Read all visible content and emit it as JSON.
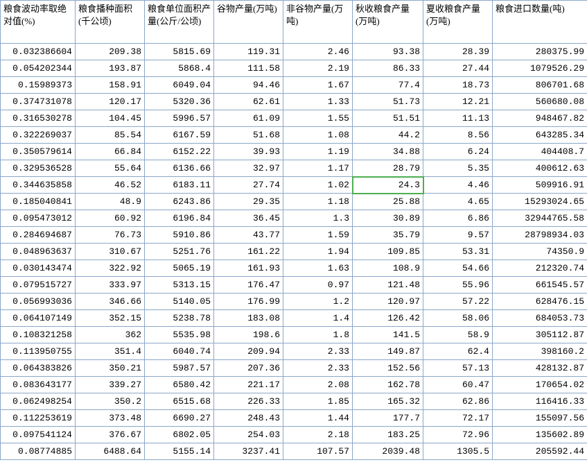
{
  "table": {
    "columns": [
      "粮食波动率取绝对值(%)",
      "粮食播种面积(千公顷)",
      "粮食单位面积产量(公斤/公顷)",
      "谷物产量(万吨)",
      "非谷物产量(万吨)",
      "秋收粮食产量(万吨)",
      "夏收粮食产量(万吨)",
      "粮食进口数量(吨)"
    ],
    "active_cell": {
      "row": 8,
      "col": 5
    },
    "rows": [
      [
        "0.032386604",
        "209.38",
        "5815.69",
        "119.31",
        "2.46",
        "93.38",
        "28.39",
        "280375.99"
      ],
      [
        "0.054202344",
        "193.87",
        "5868.4",
        "111.58",
        "2.19",
        "86.33",
        "27.44",
        "1079526.29"
      ],
      [
        "0.15989373",
        "158.91",
        "6049.04",
        "94.46",
        "1.67",
        "77.4",
        "18.73",
        "806701.68"
      ],
      [
        "0.374731078",
        "120.17",
        "5320.36",
        "62.61",
        "1.33",
        "51.73",
        "12.21",
        "560680.08"
      ],
      [
        "0.316530278",
        "104.45",
        "5996.57",
        "61.09",
        "1.55",
        "51.51",
        "11.13",
        "948467.82"
      ],
      [
        "0.322269037",
        "85.54",
        "6167.59",
        "51.68",
        "1.08",
        "44.2",
        "8.56",
        "643285.34"
      ],
      [
        "0.350579614",
        "66.84",
        "6152.22",
        "39.93",
        "1.19",
        "34.88",
        "6.24",
        "404408.7"
      ],
      [
        "0.329536528",
        "55.64",
        "6136.66",
        "32.97",
        "1.17",
        "28.79",
        "5.35",
        "400612.63"
      ],
      [
        "0.344635858",
        "46.52",
        "6183.11",
        "27.74",
        "1.02",
        "24.3",
        "4.46",
        "509916.91"
      ],
      [
        "0.185040841",
        "48.9",
        "6243.86",
        "29.35",
        "1.18",
        "25.88",
        "4.65",
        "15293024.65"
      ],
      [
        "0.095473012",
        "60.92",
        "6196.84",
        "36.45",
        "1.3",
        "30.89",
        "6.86",
        "32944765.58"
      ],
      [
        "0.284694687",
        "76.73",
        "5910.86",
        "43.77",
        "1.59",
        "35.79",
        "9.57",
        "28798934.03"
      ],
      [
        "0.048963637",
        "310.67",
        "5251.76",
        "161.22",
        "1.94",
        "109.85",
        "53.31",
        "74350.9"
      ],
      [
        "0.030143474",
        "322.92",
        "5065.19",
        "161.93",
        "1.63",
        "108.9",
        "54.66",
        "212320.74"
      ],
      [
        "0.079515727",
        "333.97",
        "5313.15",
        "176.47",
        "0.97",
        "121.48",
        "55.96",
        "661545.57"
      ],
      [
        "0.056993036",
        "346.66",
        "5140.05",
        "176.99",
        "1.2",
        "120.97",
        "57.22",
        "628476.15"
      ],
      [
        "0.064107149",
        "352.15",
        "5238.78",
        "183.08",
        "1.4",
        "126.42",
        "58.06",
        "684053.73"
      ],
      [
        "0.108321258",
        "362",
        "5535.98",
        "198.6",
        "1.8",
        "141.5",
        "58.9",
        "305112.87"
      ],
      [
        "0.113950755",
        "351.4",
        "6040.74",
        "209.94",
        "2.33",
        "149.87",
        "62.4",
        "398160.2"
      ],
      [
        "0.064383826",
        "350.21",
        "5987.57",
        "207.36",
        "2.33",
        "152.56",
        "57.13",
        "428132.87"
      ],
      [
        "0.083643177",
        "339.27",
        "6580.42",
        "221.17",
        "2.08",
        "162.78",
        "60.47",
        "170654.02"
      ],
      [
        "0.062498254",
        "350.2",
        "6515.68",
        "226.33",
        "1.85",
        "165.32",
        "62.86",
        "116416.33"
      ],
      [
        "0.112253619",
        "373.48",
        "6690.27",
        "248.43",
        "1.44",
        "177.7",
        "72.17",
        "155097.56"
      ],
      [
        "0.097541124",
        "376.67",
        "6802.05",
        "254.03",
        "2.18",
        "183.25",
        "72.96",
        "135602.89"
      ],
      [
        "0.08774885",
        "6488.64",
        "5155.14",
        "3237.41",
        "107.57",
        "2039.48",
        "1305.5",
        "205592.44"
      ]
    ],
    "styling": {
      "border_color": "#8aa7c9",
      "background_color": "#ffffff",
      "header_fontsize": 13,
      "cell_fontsize": 13,
      "header_align": "left",
      "cell_align": "right",
      "active_outline_color": "#4caf50",
      "font_family_header": "SimSun",
      "font_family_cell": "Courier New"
    }
  }
}
